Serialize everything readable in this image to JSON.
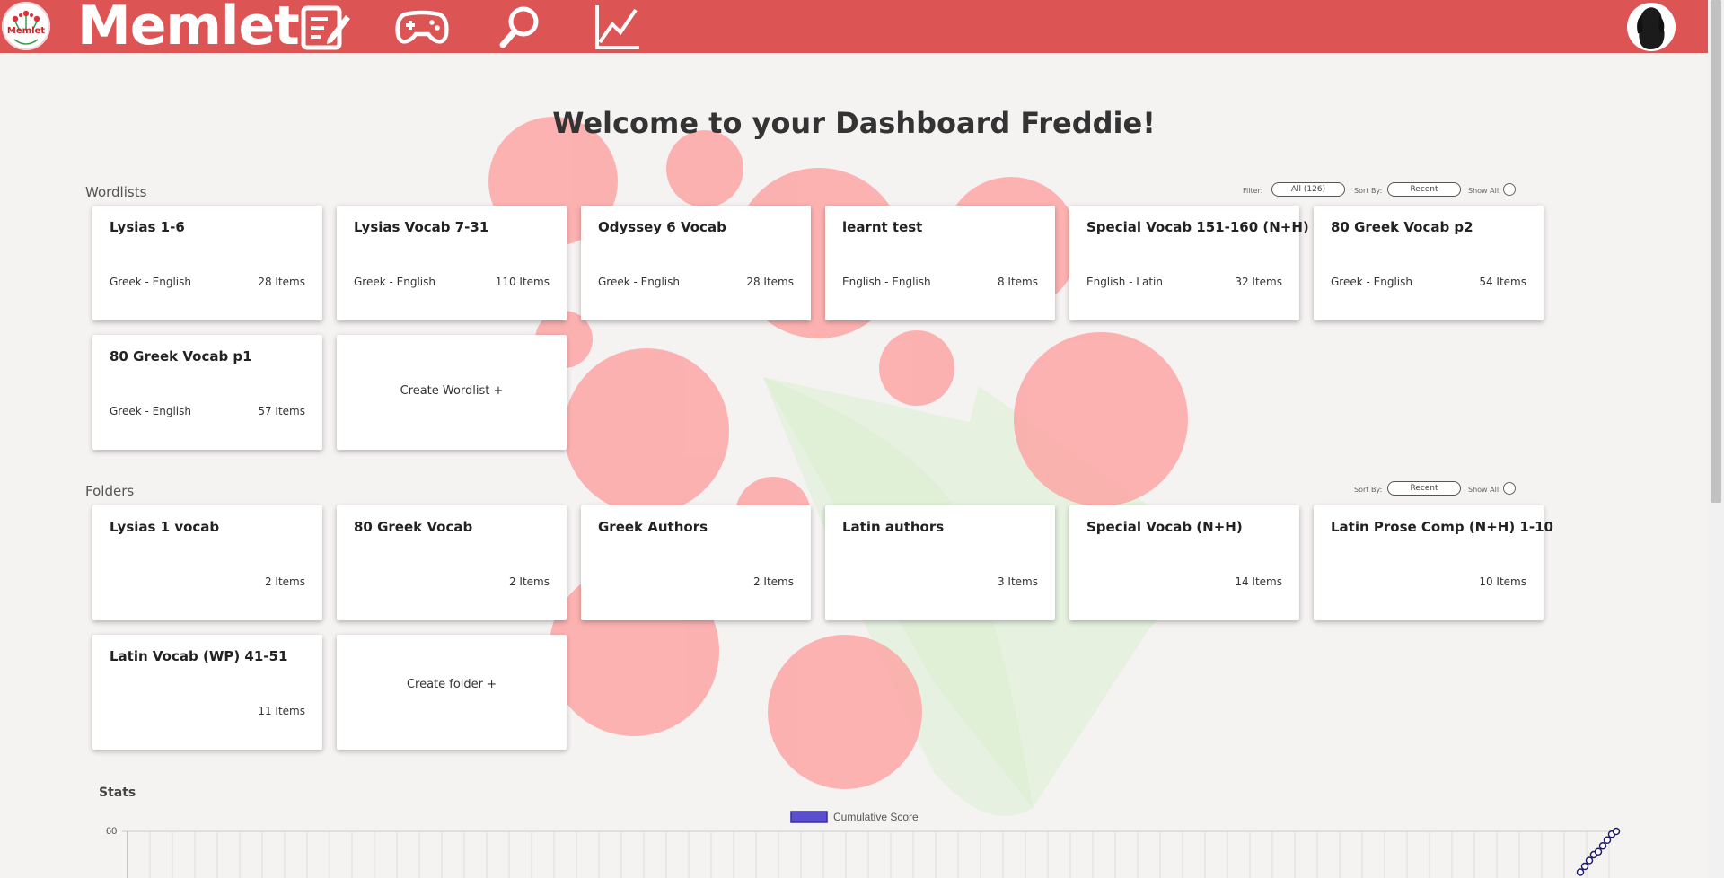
{
  "app": {
    "brand": "Memlet",
    "logo_text": "Memlet",
    "nav": [
      {
        "name": "wordlists",
        "icon": "edit-list-icon"
      },
      {
        "name": "games",
        "icon": "gamepad-icon"
      },
      {
        "name": "search",
        "icon": "search-icon"
      },
      {
        "name": "stats",
        "icon": "line-chart-icon"
      }
    ],
    "avatar_icon": "dog-avatar-icon",
    "accent": "#dc5454"
  },
  "page": {
    "title": "Welcome to your Dashboard Freddie!"
  },
  "wordlists": {
    "title": "Wordlists",
    "controls": {
      "filter_label": "Filter:",
      "filter_value": "All (126)",
      "sort_label": "Sort By:",
      "sort_value": "Recent",
      "show_all_label": "Show All:"
    },
    "items": [
      {
        "title": "Lysias 1-6",
        "lang": "Greek - English",
        "count": "28 Items"
      },
      {
        "title": "Lysias Vocab 7-31",
        "lang": "Greek - English",
        "count": "110 Items"
      },
      {
        "title": "Odyssey 6 Vocab",
        "lang": "Greek - English",
        "count": "28 Items"
      },
      {
        "title": "learnt test",
        "lang": "English - English",
        "count": "8 Items"
      },
      {
        "title": "Special Vocab 151-160 (N+H)",
        "lang": "English - Latin",
        "count": "32 Items"
      },
      {
        "title": "80 Greek Vocab p2",
        "lang": "Greek - English",
        "count": "54 Items"
      },
      {
        "title": "80 Greek Vocab p1",
        "lang": "Greek - English",
        "count": "57 Items"
      }
    ],
    "create_label": "Create Wordlist +"
  },
  "folders": {
    "title": "Folders",
    "controls": {
      "sort_label": "Sort By:",
      "sort_value": "Recent",
      "show_all_label": "Show All:"
    },
    "items": [
      {
        "title": "Lysias 1 vocab",
        "count": "2 Items"
      },
      {
        "title": "80 Greek Vocab",
        "count": "2 Items"
      },
      {
        "title": "Greek Authors",
        "count": "2 Items"
      },
      {
        "title": "Latin authors",
        "count": "3 Items"
      },
      {
        "title": "Special Vocab (N+H)",
        "count": "14 Items"
      },
      {
        "title": "Latin Prose Comp (N+H) 1-10",
        "count": "10 Items"
      },
      {
        "title": "Latin Vocab (WP) 41-51",
        "count": "11 Items"
      }
    ],
    "create_label": "Create folder +"
  },
  "stats": {
    "title": "Stats"
  },
  "chart_data": {
    "type": "line",
    "legend": [
      {
        "name": "Cumulative Score",
        "color": "#5b4fcf"
      }
    ],
    "series": [
      {
        "name": "Cumulative Score",
        "values": [
          46,
          48,
          50,
          52,
          53,
          55,
          57,
          59,
          60
        ]
      }
    ],
    "ytick_top": "60",
    "legend_position": "top-center",
    "grid": true
  }
}
